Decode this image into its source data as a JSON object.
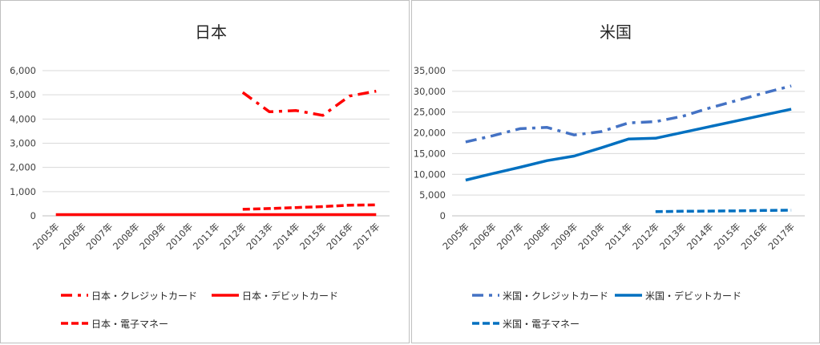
{
  "chart_data": [
    {
      "type": "line",
      "title": "日本",
      "categories": [
        "2005年",
        "2006年",
        "2007年",
        "2008年",
        "2009年",
        "2010年",
        "2011年",
        "2012年",
        "2013年",
        "2014年",
        "2015年",
        "2016年",
        "2017年"
      ],
      "y_ticks": [
        "0",
        "1,000",
        "2,000",
        "3,000",
        "4,000",
        "5,000",
        "6,000"
      ],
      "ylim": [
        0,
        6000
      ],
      "grid": true,
      "legend_position": "bottom",
      "series": [
        {
          "name": "日本・クレジットカード",
          "color": "#ff0000",
          "style": "dash-dot",
          "values": [
            null,
            null,
            null,
            null,
            null,
            null,
            null,
            5100,
            4300,
            4350,
            4150,
            4950,
            5150
          ]
        },
        {
          "name": "日本・デビットカード",
          "color": "#ff0000",
          "style": "solid",
          "values": [
            50,
            50,
            50,
            50,
            50,
            50,
            50,
            50,
            50,
            50,
            50,
            50,
            50
          ]
        },
        {
          "name": "日本・電子マネー",
          "color": "#ff0000",
          "style": "dashed",
          "values": [
            null,
            null,
            null,
            null,
            null,
            null,
            null,
            270,
            300,
            340,
            380,
            440,
            450
          ]
        }
      ]
    },
    {
      "type": "line",
      "title": "米国",
      "categories": [
        "2005年",
        "2006年",
        "2007年",
        "2008年",
        "2009年",
        "2010年",
        "2011年",
        "2012年",
        "2013年",
        "2014年",
        "2015年",
        "2016年",
        "2017年"
      ],
      "y_ticks": [
        "0",
        "5,000",
        "10,000",
        "15,000",
        "20,000",
        "25,000",
        "30,000",
        "35,000"
      ],
      "ylim": [
        0,
        35000
      ],
      "grid": true,
      "legend_position": "bottom",
      "series": [
        {
          "name": "米国・クレジットカード",
          "color": "#4472c4",
          "style": "dash-dot",
          "values": [
            17800,
            19300,
            21000,
            21300,
            19500,
            20300,
            22400,
            22700,
            24000,
            26000,
            27800,
            29600,
            31300
          ]
        },
        {
          "name": "米国・デビットカード",
          "color": "#0070c0",
          "style": "solid",
          "values": [
            8600,
            10200,
            11700,
            13300,
            14400,
            16400,
            18500,
            18700,
            20100,
            21500,
            22900,
            24300,
            25700
          ]
        },
        {
          "name": "米国・電子マネー",
          "color": "#0070c0",
          "style": "dashed",
          "values": [
            null,
            null,
            null,
            null,
            null,
            null,
            null,
            1000,
            1100,
            1150,
            1200,
            1300,
            1350
          ]
        }
      ]
    }
  ]
}
